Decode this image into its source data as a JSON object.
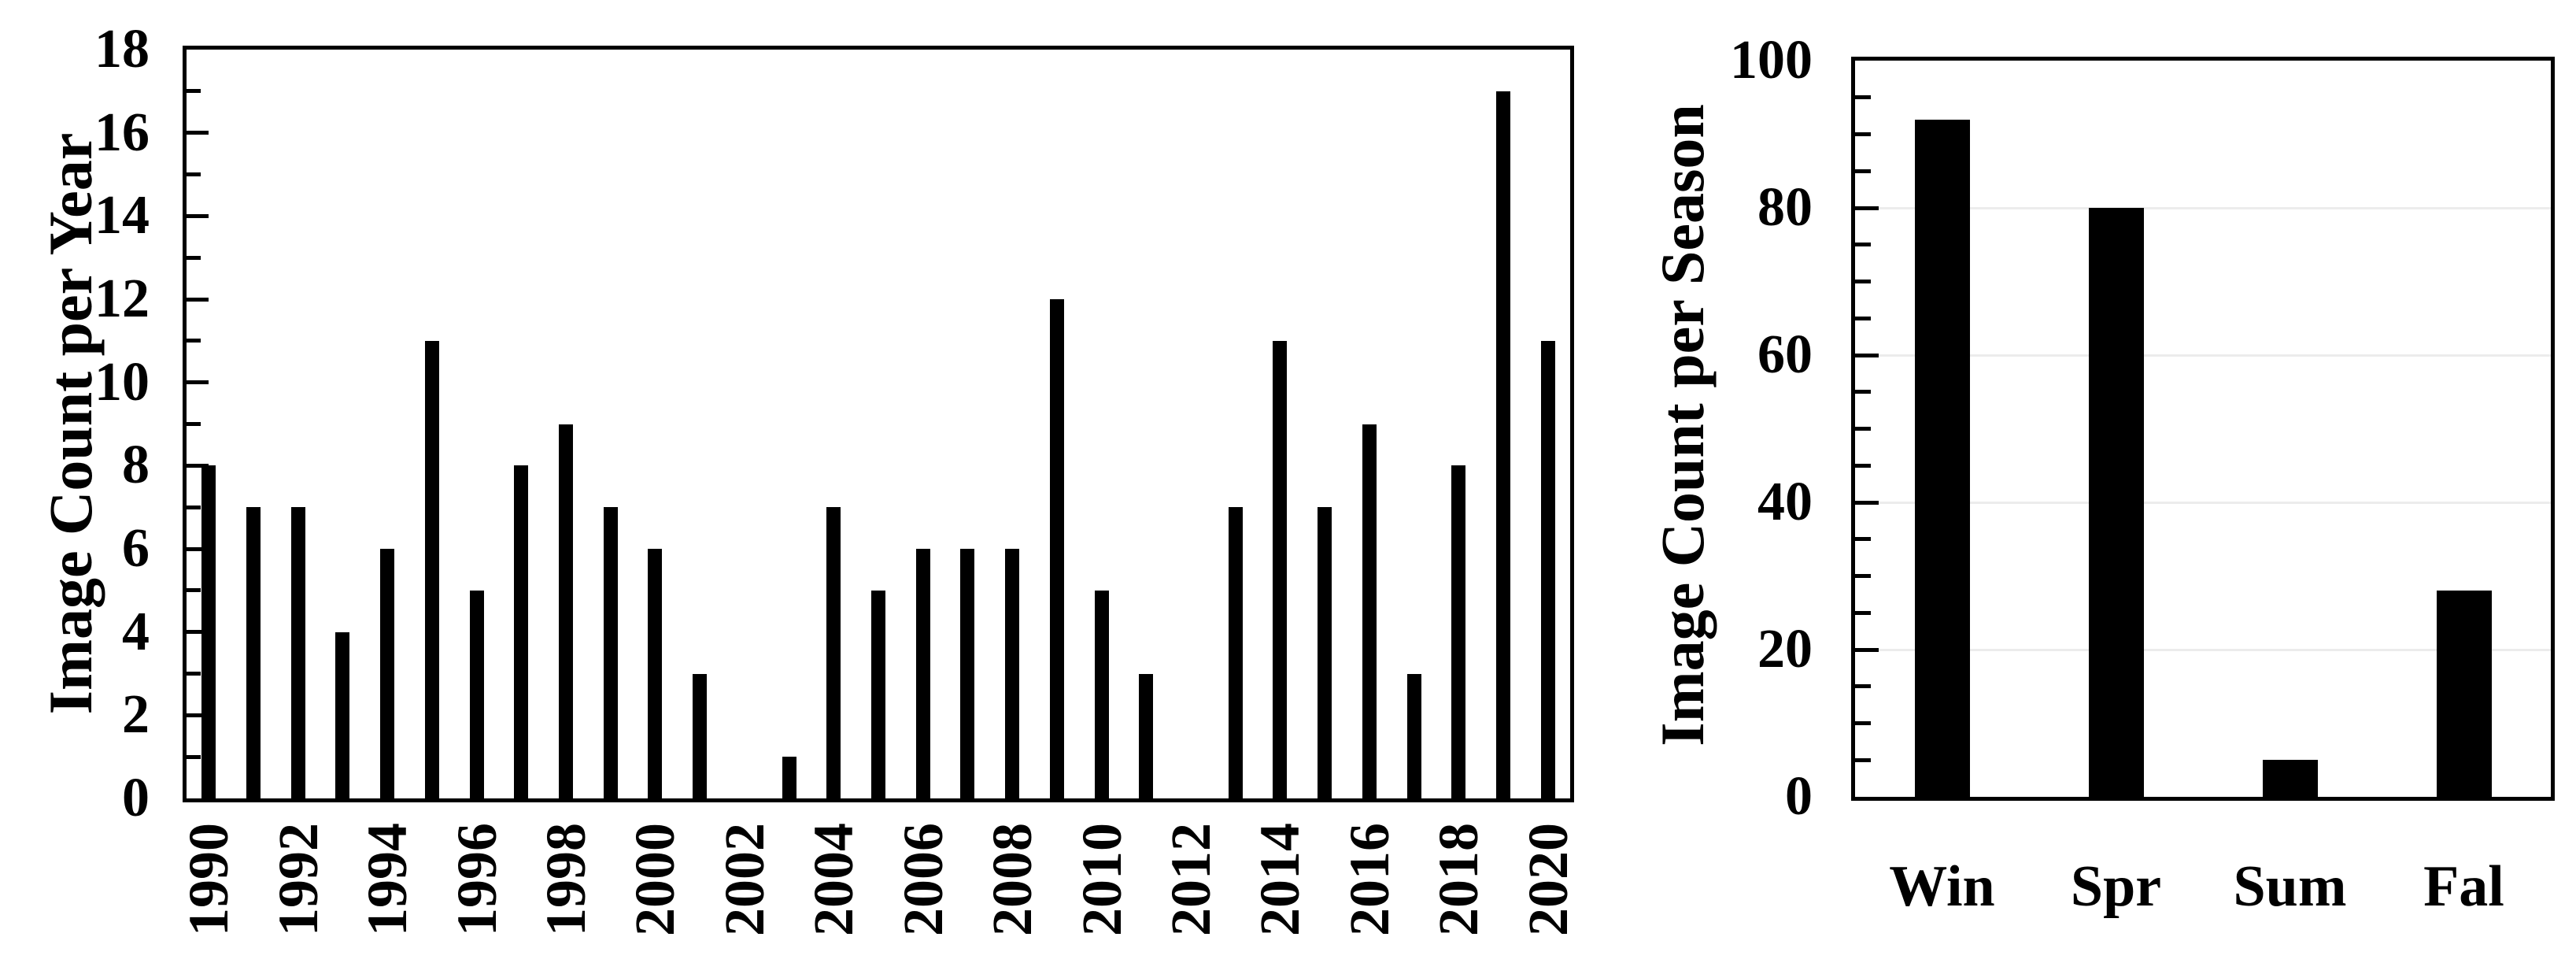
{
  "page": {
    "background": "#ffffff",
    "bar_color": "#000000",
    "axis_color": "#000000",
    "gridline_color": "#ececec"
  },
  "chart_data": [
    {
      "type": "bar",
      "ylabel": "Image Count per Year",
      "x": [
        "1990",
        "1991",
        "1992",
        "1993",
        "1994",
        "1995",
        "1996",
        "1997",
        "1998",
        "1999",
        "2000",
        "2001",
        "2002",
        "2003",
        "2004",
        "2005",
        "2006",
        "2007",
        "2008",
        "2009",
        "2010",
        "2011",
        "2012",
        "2013",
        "2014",
        "2015",
        "2016",
        "2017",
        "2018",
        "2019",
        "2020"
      ],
      "values": [
        8,
        7,
        7,
        4,
        6,
        11,
        5,
        8,
        9,
        7,
        6,
        3,
        0,
        1,
        7,
        5,
        6,
        6,
        6,
        12,
        5,
        3,
        0,
        7,
        11,
        7,
        9,
        3,
        8,
        17,
        11
      ],
      "ylim": [
        0,
        18
      ],
      "ytick_step": 2,
      "yminor_step": 1,
      "ytick_labels": [
        "0",
        "2",
        "4",
        "6",
        "8",
        "10",
        "12",
        "14",
        "16",
        "18"
      ],
      "xtick_labels": [
        "1990",
        "1992",
        "1994",
        "1996",
        "1998",
        "2000",
        "2002",
        "2004",
        "2006",
        "2008",
        "2010",
        "2012",
        "2014",
        "2016",
        "2018",
        "2020"
      ],
      "grid": false,
      "legend": null
    },
    {
      "type": "bar",
      "ylabel": "Image Count per Season",
      "x": [
        "Win",
        "Spr",
        "Sum",
        "Fal"
      ],
      "values": [
        92,
        80,
        5,
        28
      ],
      "ylim": [
        0,
        100
      ],
      "ytick_step": 20,
      "yminor_step": 5,
      "ytick_labels": [
        "0",
        "20",
        "40",
        "60",
        "80",
        "100"
      ],
      "xtick_labels": [
        "Win",
        "Spr",
        "Sum",
        "Fal"
      ],
      "grid": true,
      "legend": null
    }
  ]
}
